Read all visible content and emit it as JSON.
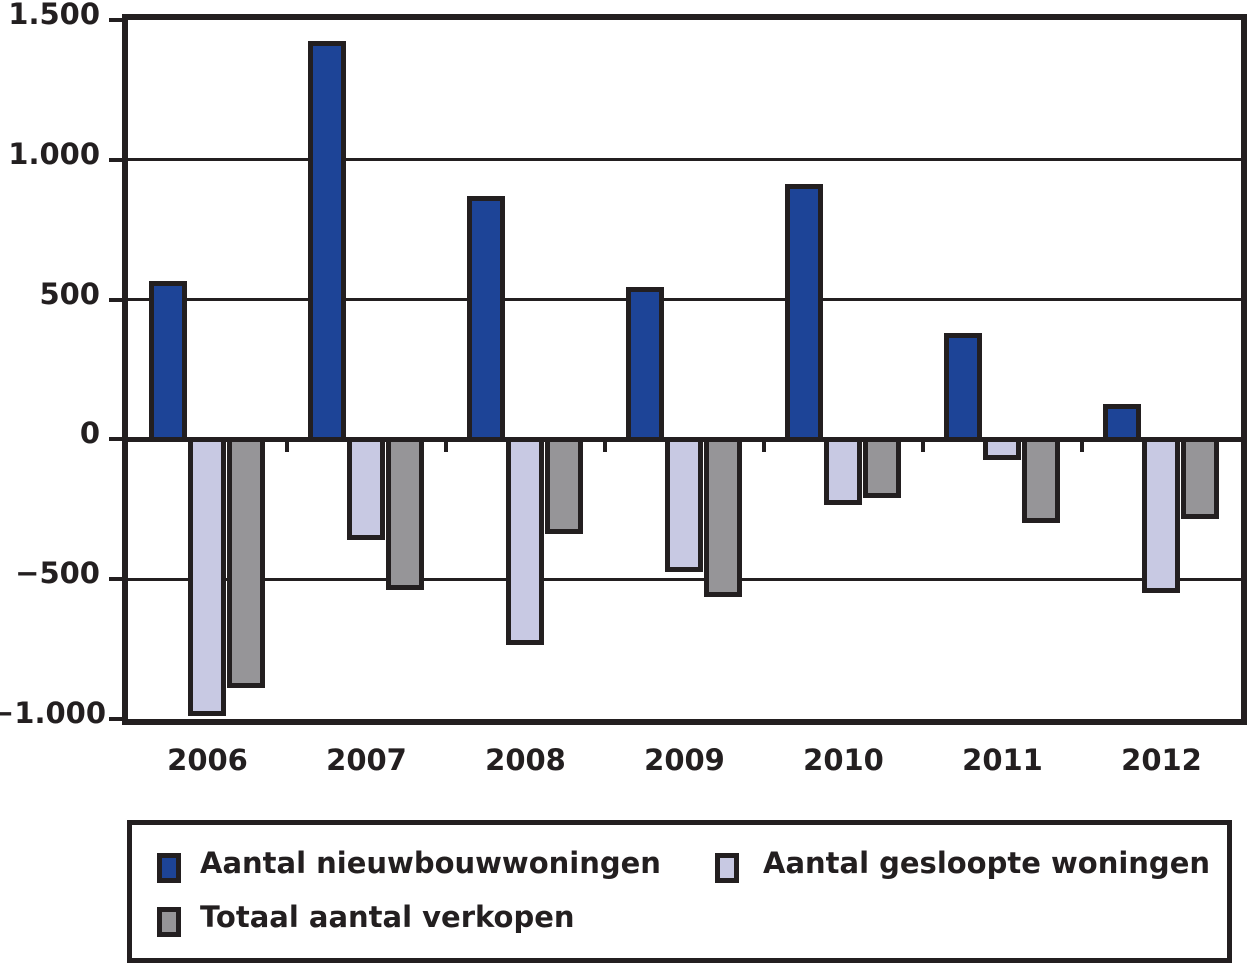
{
  "chart_data": {
    "type": "bar",
    "categories": [
      "2006",
      "2007",
      "2008",
      "2009",
      "2010",
      "2011",
      "2012"
    ],
    "series": [
      {
        "name": "Aantal nieuwbouwwoningen",
        "color": "#1D4497",
        "values": [
          565,
          1425,
          870,
          545,
          915,
          380,
          125
        ]
      },
      {
        "name": "Aantal gesloopte woningen",
        "color": "#C8C9E3",
        "values": [
          -990,
          -360,
          -735,
          -475,
          -235,
          -75,
          -550
        ]
      },
      {
        "name": "Totaal aantal verkopen",
        "color": "#969598",
        "values": [
          -890,
          -540,
          -340,
          -565,
          -210,
          -300,
          -285
        ]
      }
    ],
    "title": "",
    "xlabel": "",
    "ylabel": "",
    "ylim": [
      -1000,
      1500
    ],
    "yticks": [
      {
        "value": 1500,
        "label": "1.500"
      },
      {
        "value": 1000,
        "label": "1.000"
      },
      {
        "value": 500,
        "label": "500"
      },
      {
        "value": 0,
        "label": "0"
      },
      {
        "value": -500,
        "label": "−500"
      },
      {
        "value": -1000,
        "label": "−1.000"
      }
    ],
    "grid": true,
    "legend_position": "bottom"
  },
  "colors": {
    "outline": "#231F20",
    "background": "#FFFFFF"
  }
}
